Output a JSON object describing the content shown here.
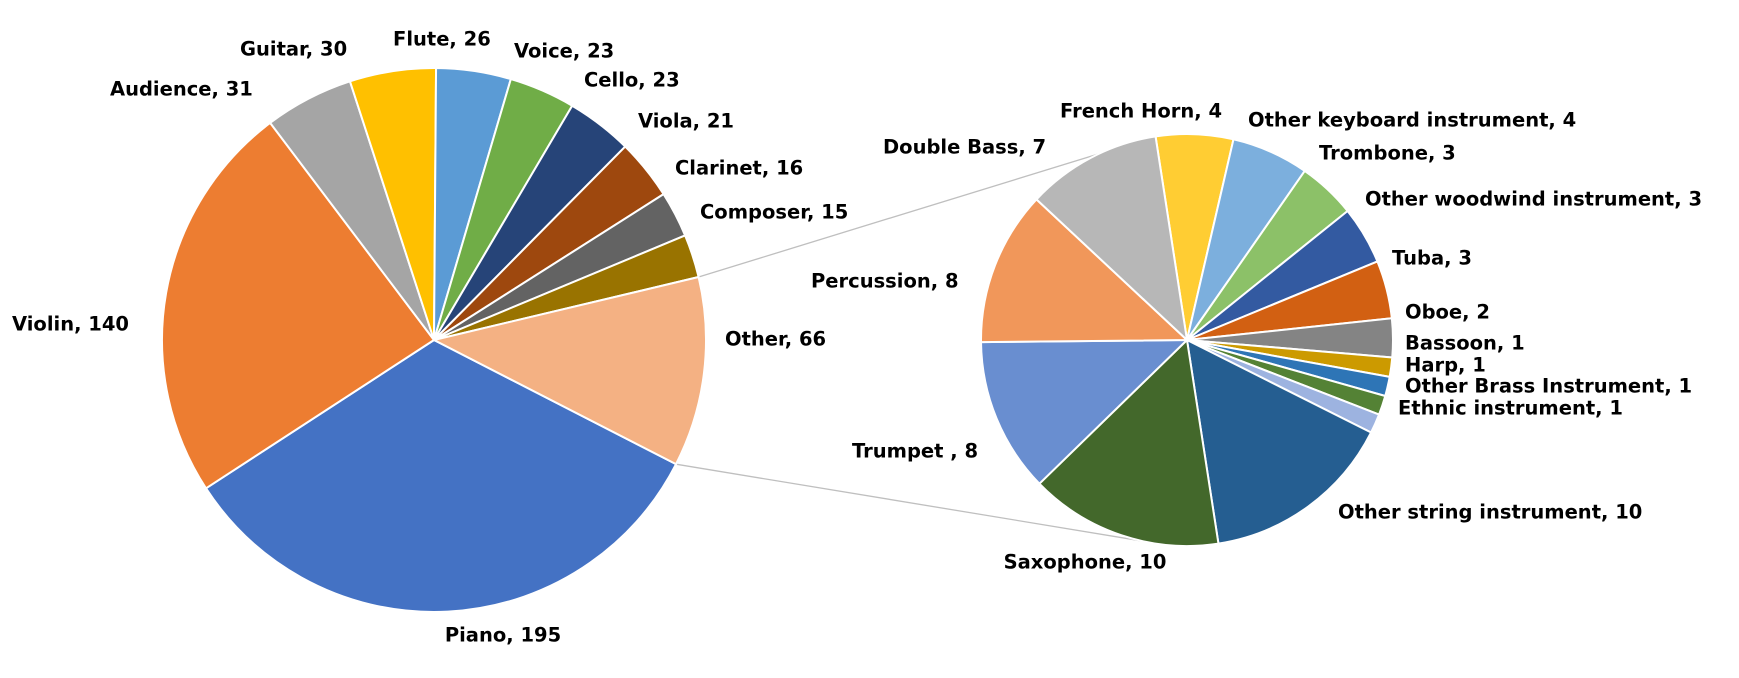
{
  "chart_data": [
    {
      "type": "pie",
      "title": "",
      "slices": [
        {
          "label": "Piano, 195",
          "name": "Piano",
          "value": 195,
          "color": "#4472C4"
        },
        {
          "label": "Violin, 140",
          "name": "Violin",
          "value": 140,
          "color": "#ED7D31"
        },
        {
          "label": "Audience, 31",
          "name": "Audience",
          "value": 31,
          "color": "#A5A5A5"
        },
        {
          "label": "Guitar, 30",
          "name": "Guitar",
          "value": 30,
          "color": "#FFC000"
        },
        {
          "label": "Flute, 26",
          "name": "Flute",
          "value": 26,
          "color": "#5B9BD5"
        },
        {
          "label": "Voice, 23",
          "name": "Voice",
          "value": 23,
          "color": "#70AD47"
        },
        {
          "label": "Cello, 23",
          "name": "Cello",
          "value": 23,
          "color": "#264478"
        },
        {
          "label": "Viola, 21",
          "name": "Viola",
          "value": 21,
          "color": "#9E480E"
        },
        {
          "label": "Clarinet, 16",
          "name": "Clarinet",
          "value": 16,
          "color": "#636363"
        },
        {
          "label": "Composer, 15",
          "name": "Composer",
          "value": 15,
          "color": "#997300"
        },
        {
          "label": "Other, 66",
          "name": "Other",
          "value": 66,
          "color": "#F4B183"
        }
      ]
    },
    {
      "type": "pie",
      "title": "",
      "breakout_of": "Other",
      "slices": [
        {
          "label": "French Horn, 4",
          "name": "French Horn",
          "value": 4,
          "color": "#FFCD33"
        },
        {
          "label": "Other keyboard instrument, 4",
          "name": "Other keyboard instrument",
          "value": 4,
          "color": "#7CAFDD"
        },
        {
          "label": "Trombone, 3",
          "name": "Trombone",
          "value": 3,
          "color": "#8CC168"
        },
        {
          "label": "Other woodwind instrument, 3",
          "name": "Other woodwind instrument",
          "value": 3,
          "color": "#335AA1"
        },
        {
          "label": "Tuba, 3",
          "name": "Tuba",
          "value": 3,
          "color": "#D26012"
        },
        {
          "label": "Oboe, 2",
          "name": "Oboe",
          "value": 2,
          "color": "#848484"
        },
        {
          "label": "Bassoon, 1",
          "name": "Bassoon",
          "value": 1,
          "color": "#CC9A00"
        },
        {
          "label": "Harp, 1",
          "name": "Harp",
          "value": 1,
          "color": "#2E75B6"
        },
        {
          "label": "Other Brass Instrument, 1",
          "name": "Other Brass Instrument",
          "value": 1,
          "color": "#548235"
        },
        {
          "label": "Ethnic instrument, 1",
          "name": "Ethnic instrument",
          "value": 1,
          "color": "#9DB3E0"
        },
        {
          "label": "Other string instrument, 10",
          "name": "Other string instrument",
          "value": 10,
          "color": "#255E91"
        },
        {
          "label": "Saxophone, 10",
          "name": "Saxophone",
          "value": 10,
          "color": "#43682B"
        },
        {
          "label": "Trumpet , 8",
          "name": "Trumpet",
          "value": 8,
          "color": "#698ED0"
        },
        {
          "label": "Percussion, 8",
          "name": "Percussion",
          "value": 8,
          "color": "#F1975A"
        },
        {
          "label": "Double Bass, 7",
          "name": "Double Bass",
          "value": 7,
          "color": "#B7B7B7"
        }
      ]
    }
  ],
  "colors": {
    "slice_border": "#FFFFFF",
    "connector_line": "#BFBFBF",
    "label_text": "#000000"
  }
}
